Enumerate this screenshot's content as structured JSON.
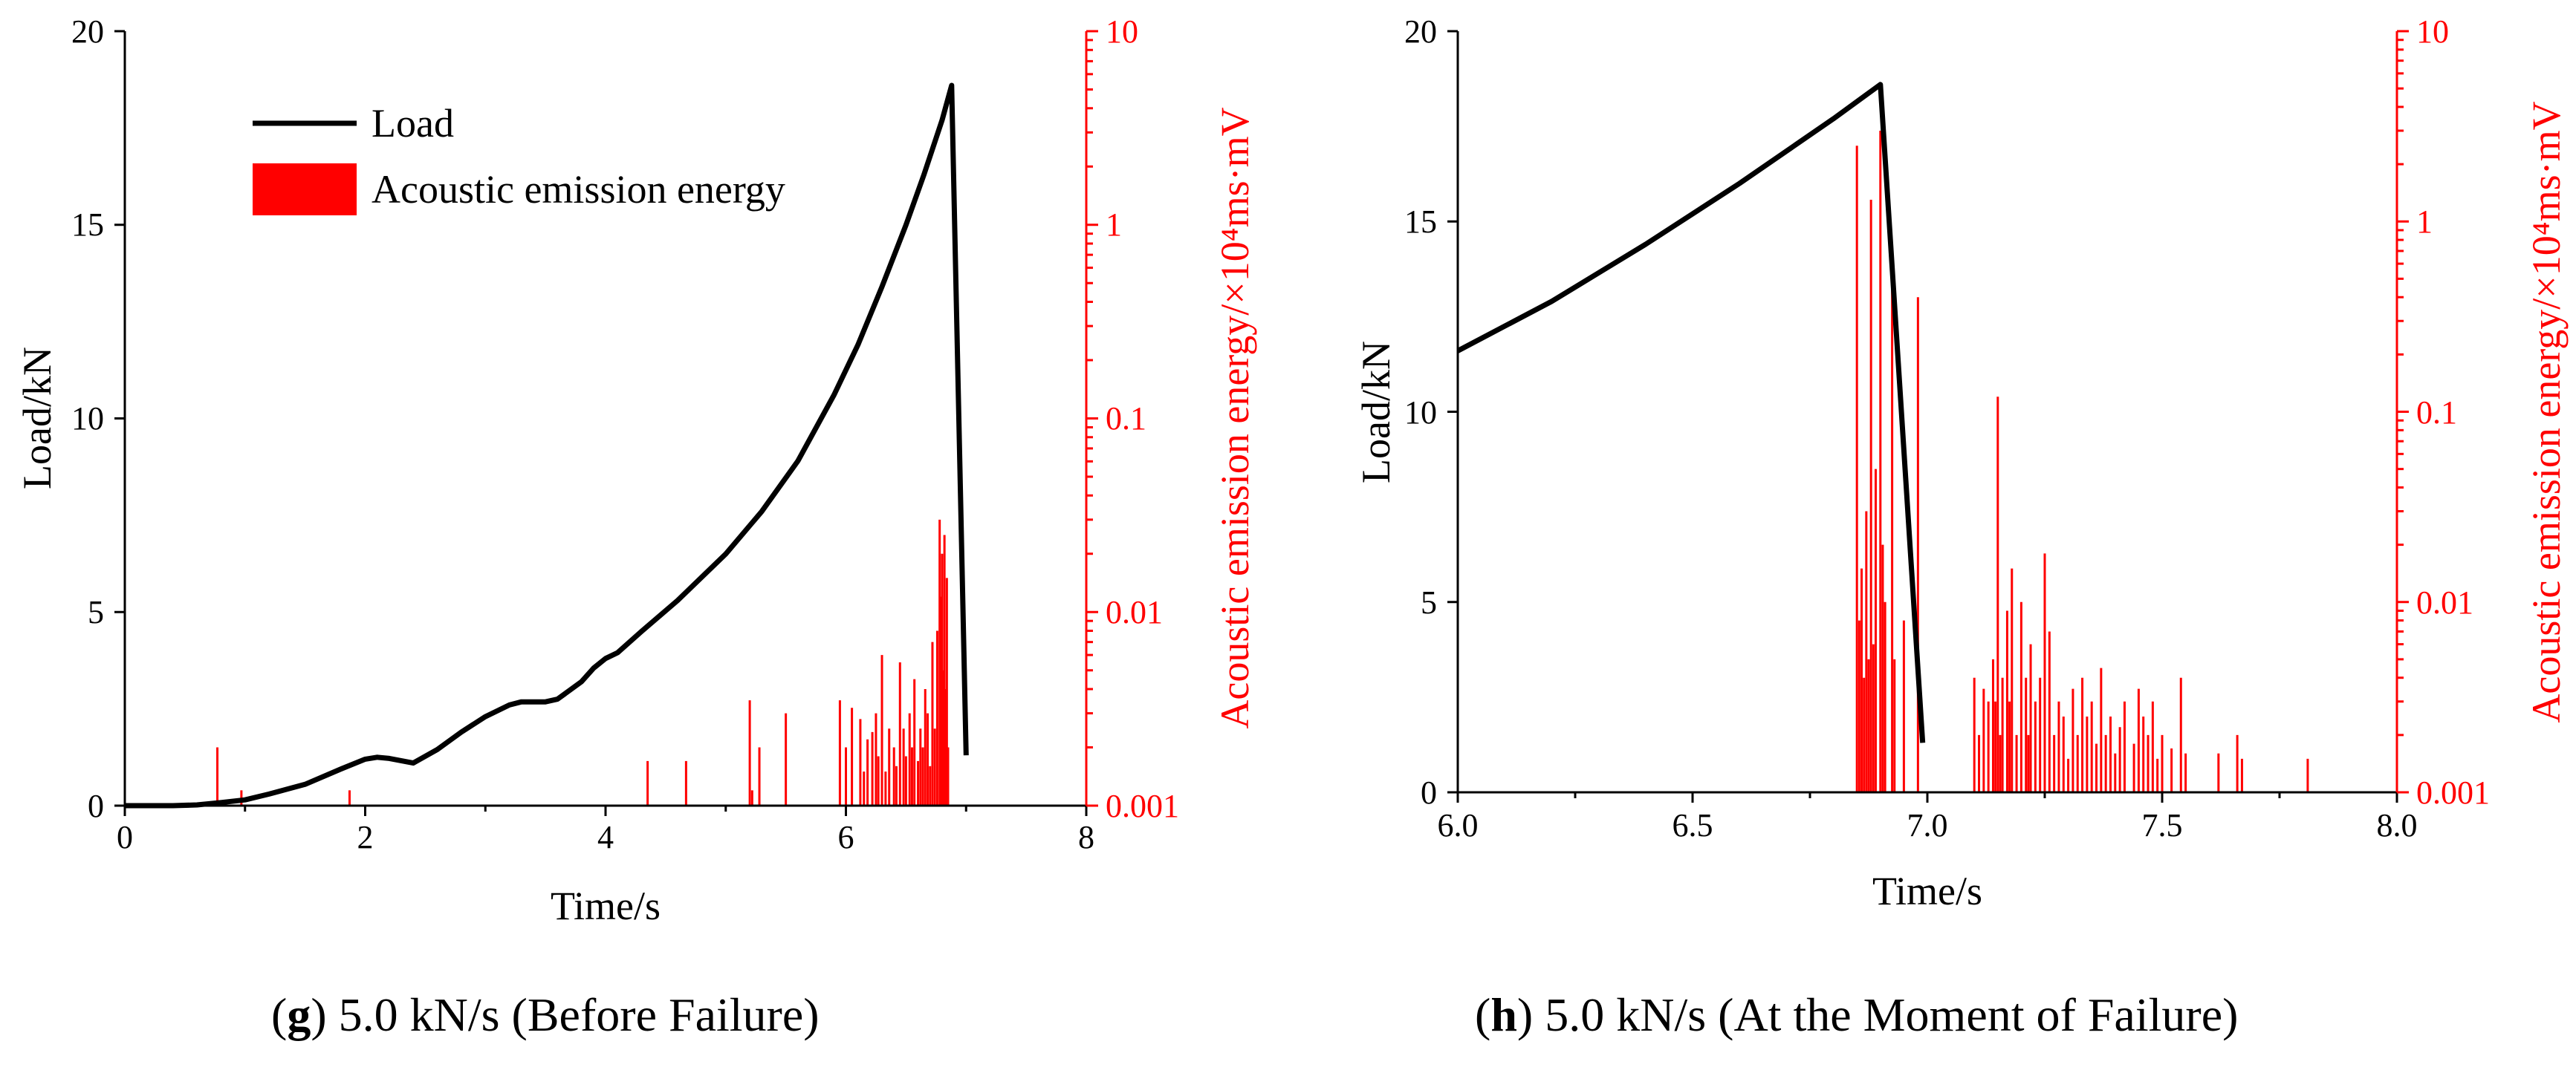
{
  "chart_data": [
    {
      "id": "g",
      "type": "line+bar",
      "caption_letter": "g",
      "caption_text": "5.0 kN/s (Before Failure)",
      "xlabel": "Time/s",
      "ylabel": "Load/kN",
      "ylabel_right": "Acoustic emission energy/×10⁴ms·mV",
      "xlim": [
        0,
        8
      ],
      "ylim": [
        0,
        20
      ],
      "ylim_right": [
        0.001,
        10
      ],
      "x_ticks": [
        "0",
        "2",
        "4",
        "6",
        "8"
      ],
      "y_ticks": [
        "0",
        "5",
        "10",
        "15",
        "20"
      ],
      "y_right_ticks": [
        "0.001",
        "0.01",
        "0.1",
        "1",
        "10"
      ],
      "legend": {
        "position": "top-left",
        "entries": [
          "Load",
          "Acoustic emission energy"
        ]
      },
      "series": [
        {
          "name": "Load",
          "color": "#000000",
          "points": [
            [
              0.0,
              0
            ],
            [
              0.4,
              0
            ],
            [
              0.6,
              0.02
            ],
            [
              0.8,
              0.08
            ],
            [
              1.0,
              0.15
            ],
            [
              1.2,
              0.3
            ],
            [
              1.5,
              0.55
            ],
            [
              1.8,
              0.95
            ],
            [
              2.0,
              1.2
            ],
            [
              2.1,
              1.25
            ],
            [
              2.2,
              1.22
            ],
            [
              2.4,
              1.1
            ],
            [
              2.6,
              1.45
            ],
            [
              2.8,
              1.9
            ],
            [
              3.0,
              2.3
            ],
            [
              3.2,
              2.6
            ],
            [
              3.3,
              2.68
            ],
            [
              3.5,
              2.68
            ],
            [
              3.6,
              2.75
            ],
            [
              3.8,
              3.2
            ],
            [
              3.9,
              3.55
            ],
            [
              4.0,
              3.8
            ],
            [
              4.1,
              3.95
            ],
            [
              4.3,
              4.5
            ],
            [
              4.6,
              5.3
            ],
            [
              5.0,
              6.5
            ],
            [
              5.3,
              7.6
            ],
            [
              5.6,
              8.9
            ],
            [
              5.9,
              10.6
            ],
            [
              6.1,
              11.9
            ],
            [
              6.3,
              13.4
            ],
            [
              6.5,
              15.0
            ],
            [
              6.65,
              16.3
            ],
            [
              6.8,
              17.7
            ],
            [
              6.88,
              18.6
            ],
            [
              7.0,
              1.3
            ]
          ]
        },
        {
          "name": "Acoustic emission energy",
          "color": "#ff0000",
          "style": "bars",
          "bars": [
            [
              0.77,
              0.002
            ],
            [
              0.97,
              0.0012
            ],
            [
              1.87,
              0.0012
            ],
            [
              4.35,
              0.0017
            ],
            [
              4.67,
              0.0017
            ],
            [
              5.2,
              0.0035
            ],
            [
              5.22,
              0.0012
            ],
            [
              5.28,
              0.002
            ],
            [
              5.5,
              0.003
            ],
            [
              5.95,
              0.0035
            ],
            [
              6.0,
              0.002
            ],
            [
              6.05,
              0.0032
            ],
            [
              6.12,
              0.0028
            ],
            [
              6.15,
              0.0015
            ],
            [
              6.18,
              0.0022
            ],
            [
              6.22,
              0.0024
            ],
            [
              6.25,
              0.003
            ],
            [
              6.27,
              0.0018
            ],
            [
              6.3,
              0.006
            ],
            [
              6.33,
              0.0015
            ],
            [
              6.36,
              0.0025
            ],
            [
              6.4,
              0.002
            ],
            [
              6.42,
              0.0016
            ],
            [
              6.45,
              0.0055
            ],
            [
              6.48,
              0.0025
            ],
            [
              6.5,
              0.0018
            ],
            [
              6.53,
              0.003
            ],
            [
              6.55,
              0.002
            ],
            [
              6.57,
              0.0045
            ],
            [
              6.6,
              0.0017
            ],
            [
              6.62,
              0.0025
            ],
            [
              6.64,
              0.002
            ],
            [
              6.66,
              0.004
            ],
            [
              6.68,
              0.003
            ],
            [
              6.7,
              0.0016
            ],
            [
              6.72,
              0.007
            ],
            [
              6.74,
              0.0025
            ],
            [
              6.76,
              0.008
            ],
            [
              6.78,
              0.03
            ],
            [
              6.79,
              0.012
            ],
            [
              6.8,
              0.02
            ],
            [
              6.81,
              0.005
            ],
            [
              6.82,
              0.025
            ],
            [
              6.83,
              0.004
            ],
            [
              6.84,
              0.015
            ],
            [
              6.85,
              0.002
            ]
          ]
        }
      ]
    },
    {
      "id": "h",
      "type": "line+bar",
      "caption_letter": "h",
      "caption_text": "5.0 kN/s (At the Moment of Failure)",
      "xlabel": "Time/s",
      "ylabel": "Load/kN",
      "ylabel_right": "Acoustic emission energy/×10⁴ms·mV",
      "xlim": [
        6.0,
        8.0
      ],
      "ylim": [
        0,
        20
      ],
      "ylim_right": [
        0.001,
        10
      ],
      "x_ticks": [
        "6.0",
        "6.5",
        "7.0",
        "7.5",
        "8.0"
      ],
      "y_ticks": [
        "0",
        "5",
        "10",
        "15",
        "20"
      ],
      "y_right_ticks": [
        "0.001",
        "0.01",
        "0.1",
        "1",
        "10"
      ],
      "series": [
        {
          "name": "Load",
          "color": "#000000",
          "points": [
            [
              6.0,
              11.6
            ],
            [
              6.2,
              12.9
            ],
            [
              6.4,
              14.4
            ],
            [
              6.6,
              16.0
            ],
            [
              6.8,
              17.7
            ],
            [
              6.9,
              18.6
            ],
            [
              6.99,
              1.3
            ]
          ]
        },
        {
          "name": "Acoustic emission energy",
          "color": "#ff0000",
          "style": "bars",
          "bars": [
            [
              6.85,
              2.5
            ],
            [
              6.855,
              0.008
            ],
            [
              6.86,
              0.015
            ],
            [
              6.865,
              0.004
            ],
            [
              6.87,
              0.03
            ],
            [
              6.875,
              0.005
            ],
            [
              6.88,
              1.3
            ],
            [
              6.885,
              0.006
            ],
            [
              6.89,
              0.05
            ],
            [
              6.9,
              3.0
            ],
            [
              6.905,
              0.02
            ],
            [
              6.91,
              0.01
            ],
            [
              6.925,
              0.6
            ],
            [
              6.93,
              0.005
            ],
            [
              6.95,
              0.008
            ],
            [
              6.98,
              0.4
            ],
            [
              7.1,
              0.004
            ],
            [
              7.11,
              0.002
            ],
            [
              7.12,
              0.0035
            ],
            [
              7.13,
              0.003
            ],
            [
              7.14,
              0.005
            ],
            [
              7.145,
              0.003
            ],
            [
              7.15,
              0.12
            ],
            [
              7.155,
              0.002
            ],
            [
              7.16,
              0.004
            ],
            [
              7.17,
              0.009
            ],
            [
              7.175,
              0.003
            ],
            [
              7.18,
              0.015
            ],
            [
              7.19,
              0.002
            ],
            [
              7.2,
              0.01
            ],
            [
              7.21,
              0.004
            ],
            [
              7.215,
              0.002
            ],
            [
              7.22,
              0.006
            ],
            [
              7.23,
              0.003
            ],
            [
              7.24,
              0.004
            ],
            [
              7.25,
              0.018
            ],
            [
              7.26,
              0.007
            ],
            [
              7.27,
              0.002
            ],
            [
              7.28,
              0.003
            ],
            [
              7.29,
              0.0025
            ],
            [
              7.3,
              0.0015
            ],
            [
              7.31,
              0.0035
            ],
            [
              7.32,
              0.002
            ],
            [
              7.33,
              0.004
            ],
            [
              7.34,
              0.0025
            ],
            [
              7.35,
              0.003
            ],
            [
              7.36,
              0.0018
            ],
            [
              7.37,
              0.0045
            ],
            [
              7.38,
              0.002
            ],
            [
              7.39,
              0.0025
            ],
            [
              7.4,
              0.0016
            ],
            [
              7.41,
              0.0022
            ],
            [
              7.42,
              0.003
            ],
            [
              7.44,
              0.0018
            ],
            [
              7.45,
              0.0035
            ],
            [
              7.46,
              0.0025
            ],
            [
              7.47,
              0.002
            ],
            [
              7.48,
              0.003
            ],
            [
              7.49,
              0.0015
            ],
            [
              7.5,
              0.002
            ],
            [
              7.52,
              0.0017
            ],
            [
              7.54,
              0.004
            ],
            [
              7.55,
              0.0016
            ],
            [
              7.62,
              0.0016
            ],
            [
              7.66,
              0.002
            ],
            [
              7.67,
              0.0015
            ],
            [
              7.81,
              0.0015
            ]
          ]
        }
      ]
    }
  ]
}
